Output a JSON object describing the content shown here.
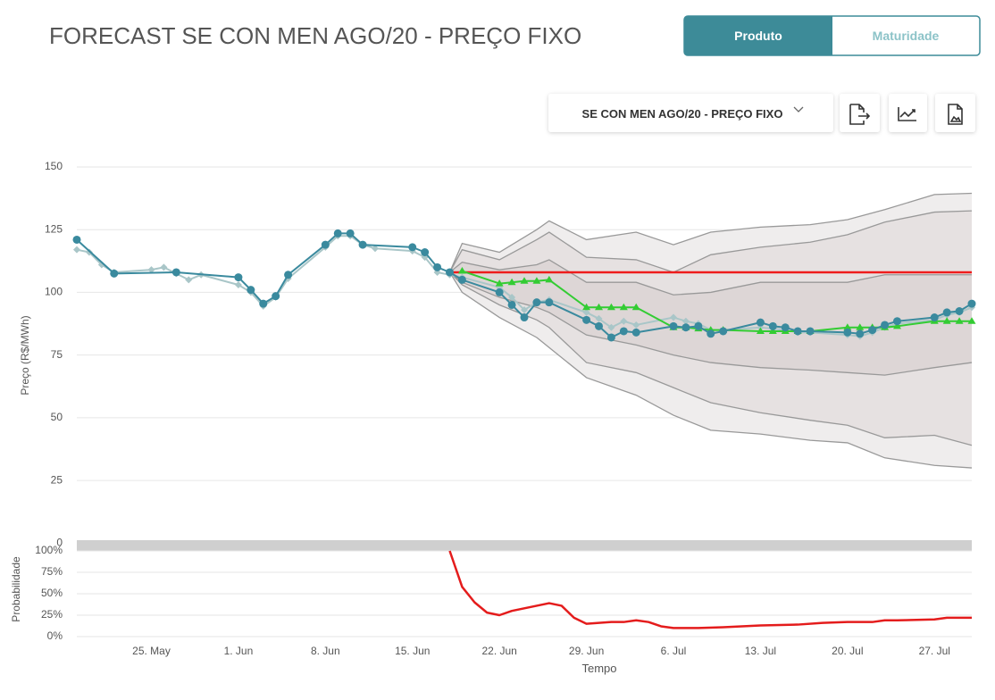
{
  "header": {
    "title": "FORECAST SE CON MEN AGO/20 - PREÇO FIXO",
    "tabs": [
      "Produto",
      "Maturidade"
    ],
    "selector": "SE CON MEN AGO/20 - PREÇO FIXO"
  },
  "chart_data": [
    {
      "type": "line",
      "ylabel": "Preço (R$/MWh)",
      "xlim": [
        "19. May",
        "30. Jul"
      ],
      "ylim": [
        0,
        150
      ],
      "yticks": [
        0,
        25,
        50,
        75,
        100,
        125,
        150
      ],
      "grid": true,
      "bands": [
        {
          "color": "#efeded",
          "x": [
            "18. Jun",
            "19. Jun",
            "22. Jun",
            "25. Jun",
            "26. Jun",
            "29. Jun",
            "3. Jul",
            "6. Jul",
            "9. Jul",
            "13. Jul",
            "17. Jul",
            "20. Jul",
            "23. Jul",
            "27. Jul",
            "30. Jul"
          ],
          "upper": [
            108,
            119.5,
            116,
            125,
            128.5,
            121,
            124,
            119,
            124,
            126,
            127,
            129,
            133,
            139,
            139.5
          ],
          "lower": [
            108,
            100,
            90,
            82,
            78,
            66,
            59,
            51,
            45,
            43.5,
            41,
            40,
            34,
            31,
            30
          ]
        },
        {
          "color": "#e6e1e1",
          "x": [
            "18. Jun",
            "19. Jun",
            "22. Jun",
            "25. Jun",
            "26. Jun",
            "29. Jun",
            "3. Jul",
            "6. Jul",
            "9. Jul",
            "13. Jul",
            "17. Jul",
            "20. Jul",
            "23. Jul",
            "27. Jul",
            "30. Jul"
          ],
          "upper": [
            108,
            117,
            113,
            121,
            124,
            114,
            113,
            108,
            115,
            118,
            120,
            123,
            128,
            132,
            132.5
          ],
          "lower": [
            108,
            103,
            95,
            89,
            86,
            72,
            68,
            62,
            56,
            52,
            49,
            47,
            42,
            43,
            39
          ]
        },
        {
          "color": "#ddd6d6",
          "x": [
            "18. Jun",
            "19. Jun",
            "22. Jun",
            "25. Jun",
            "26. Jun",
            "29. Jun",
            "3. Jul",
            "6. Jul",
            "9. Jul",
            "13. Jul",
            "17. Jul",
            "20. Jul",
            "23. Jul",
            "27. Jul",
            "30. Jul"
          ],
          "upper": [
            108,
            112,
            109,
            111,
            113,
            104,
            104,
            99,
            100,
            104,
            104,
            104,
            107,
            107,
            107
          ],
          "lower": [
            108,
            104,
            98,
            94,
            92,
            83,
            79,
            75,
            72,
            70,
            69,
            68,
            67,
            70,
            72
          ]
        }
      ],
      "series": [
        {
          "color": "#a9c6c8",
          "marker": "diamond",
          "x": [
            "19. May",
            "20. May",
            "21. May",
            "22. May",
            "25. May",
            "26. May",
            "27. May",
            "28. May",
            "29. May",
            "1. Jun",
            "2. Jun",
            "3. Jun",
            "4. Jun",
            "5. Jun",
            "8. Jun",
            "9. Jun",
            "10. Jun",
            "11. Jun",
            "12. Jun",
            "15. Jun",
            "16. Jun",
            "17. Jun",
            "18. Jun",
            "19. Jun",
            "22. Jun",
            "23. Jun",
            "24. Jun",
            "25. Jun",
            "26. Jun",
            "29. Jun",
            "30. Jun",
            "1. Jul",
            "2. Jul",
            "3. Jul",
            "6. Jul",
            "7. Jul",
            "8. Jul",
            "9. Jul",
            "10. Jul",
            "13. Jul",
            "14. Jul",
            "15. Jul",
            "16. Jul",
            "17. Jul",
            "20. Jul",
            "21. Jul",
            "22. Jul",
            "23. Jul",
            "24. Jul",
            "27. Jul",
            "28. Jul",
            "29. Jul",
            "30. Jul"
          ],
          "values": [
            117,
            116,
            111,
            108,
            109,
            110,
            107.5,
            105,
            107,
            103,
            100,
            94.5,
            98,
            105.5,
            118,
            122.5,
            122.5,
            119,
            117.5,
            116.5,
            114,
            108,
            107,
            106,
            102,
            98,
            93,
            96,
            97,
            92,
            89.5,
            86,
            88.5,
            87,
            90,
            88.5,
            87.5,
            85,
            85,
            86,
            85.5,
            85,
            84,
            84,
            83,
            82.5,
            84,
            86,
            87.5,
            89,
            91,
            92,
            94
          ]
        },
        {
          "color": "#ee1c1c",
          "marker": "none",
          "x": [
            "18. Jun",
            "30. Jul"
          ],
          "values": [
            108,
            108
          ]
        },
        {
          "color": "#33cc33",
          "marker": "triangle",
          "x": [
            "19. Jun",
            "22. Jun",
            "23. Jun",
            "24. Jun",
            "25. Jun",
            "26. Jun",
            "29. Jun",
            "30. Jun",
            "1. Jul",
            "2. Jul",
            "3. Jul",
            "6. Jul",
            "7. Jul",
            "8. Jul",
            "9. Jul",
            "10. Jul",
            "13. Jul",
            "14. Jul",
            "15. Jul",
            "16. Jul",
            "17. Jul",
            "20. Jul",
            "21. Jul",
            "22. Jul",
            "23. Jul",
            "24. Jul",
            "27. Jul",
            "28. Jul",
            "29. Jul",
            "30. Jul"
          ],
          "values": [
            108.5,
            103.5,
            104,
            104.5,
            104.5,
            105,
            94,
            94,
            94,
            94,
            94,
            86,
            86,
            85.5,
            85,
            85,
            84.5,
            84.5,
            84.5,
            84.5,
            84.5,
            86,
            86,
            86,
            86,
            86.5,
            88.5,
            88.5,
            88.5,
            88.5
          ]
        },
        {
          "color": "#3a8a9e",
          "marker": "circle",
          "x": [
            "19. May",
            "22. May",
            "27. May",
            "1. Jun",
            "2. Jun",
            "3. Jun",
            "4. Jun",
            "5. Jun",
            "8. Jun",
            "9. Jun",
            "10. Jun",
            "11. Jun",
            "15. Jun",
            "16. Jun",
            "17. Jun",
            "18. Jun",
            "19. Jun",
            "22. Jun",
            "23. Jun",
            "24. Jun",
            "25. Jun",
            "26. Jun",
            "29. Jun",
            "30. Jun",
            "1. Jul",
            "2. Jul",
            "3. Jul",
            "6. Jul",
            "7. Jul",
            "8. Jul",
            "9. Jul",
            "10. Jul",
            "13. Jul",
            "14. Jul",
            "15. Jul",
            "16. Jul",
            "17. Jul",
            "20. Jul",
            "21. Jul",
            "22. Jul",
            "23. Jul",
            "24. Jul",
            "27. Jul",
            "28. Jul",
            "29. Jul",
            "30. Jul"
          ],
          "values": [
            121,
            107.5,
            108,
            106,
            101,
            95.5,
            98.5,
            107,
            119,
            123.5,
            123.5,
            119,
            118,
            116,
            110,
            108,
            105,
            100,
            95,
            90,
            96,
            96,
            89,
            86.5,
            82,
            84.5,
            84,
            86.5,
            86,
            86.5,
            83.5,
            84.5,
            88,
            86.5,
            86,
            84.5,
            84.5,
            84,
            83.5,
            85,
            87,
            88.5,
            90,
            92,
            92.5,
            95.5
          ]
        }
      ]
    },
    {
      "type": "line",
      "ylabel": "Probabilidade",
      "xlabel": "Tempo",
      "xlim": [
        "19. May",
        "30. Jul"
      ],
      "xticks": [
        "25. May",
        "1. Jun",
        "8. Jun",
        "15. Jun",
        "22. Jun",
        "29. Jun",
        "6. Jul",
        "13. Jul",
        "20. Jul",
        "27. Jul"
      ],
      "ylim": [
        0,
        100
      ],
      "yticks": [
        {
          "value": 0,
          "label": "0%"
        },
        {
          "value": 25,
          "label": "25%"
        },
        {
          "value": 50,
          "label": "50%"
        },
        {
          "value": 75,
          "label": "75%"
        },
        {
          "value": 100,
          "label": "100%"
        }
      ],
      "grid": true,
      "series": [
        {
          "color": "#e41c1c",
          "marker": "none",
          "x": [
            "18. Jun",
            "19. Jun",
            "20. Jun",
            "21. Jun",
            "22. Jun",
            "23. Jun",
            "24. Jun",
            "25. Jun",
            "26. Jun",
            "27. Jun",
            "28. Jun",
            "29. Jun",
            "30. Jun",
            "1. Jul",
            "2. Jul",
            "3. Jul",
            "4. Jul",
            "5. Jul",
            "6. Jul",
            "8. Jul",
            "10. Jul",
            "13. Jul",
            "16. Jul",
            "18. Jul",
            "20. Jul",
            "22. Jul",
            "23. Jul",
            "24. Jul",
            "27. Jul",
            "28. Jul",
            "30. Jul"
          ],
          "values": [
            100,
            58,
            40,
            28,
            25,
            30,
            33,
            36,
            39,
            36,
            22,
            15,
            16,
            17,
            17,
            19,
            17,
            12,
            10,
            10,
            11,
            13,
            14,
            16,
            17,
            17,
            19,
            19,
            20,
            22,
            22
          ]
        }
      ]
    }
  ]
}
